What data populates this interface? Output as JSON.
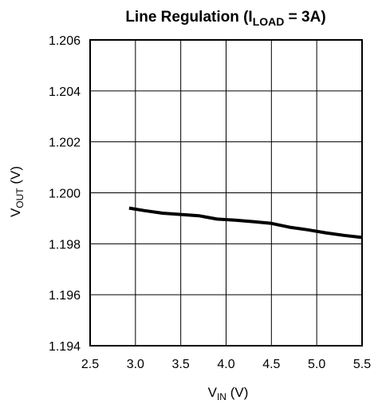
{
  "chart_data": {
    "type": "line",
    "title": {
      "prefix": "Line Regulation (I",
      "sub": "LOAD",
      "suffix": " = 3A)"
    },
    "xlabel": {
      "main": "V",
      "sub": "IN",
      "suffix": " (V)"
    },
    "ylabel": {
      "main": "V",
      "sub": "OUT",
      "suffix": " (V)"
    },
    "xlim": [
      2.5,
      5.5
    ],
    "ylim": [
      1.194,
      1.206
    ],
    "xticks": [
      "2.5",
      "3.0",
      "3.5",
      "4.0",
      "4.5",
      "5.0",
      "5.5"
    ],
    "yticks": [
      "1.194",
      "1.196",
      "1.198",
      "1.200",
      "1.202",
      "1.204",
      "1.206"
    ],
    "grid": true,
    "series": [
      {
        "x": [
          2.93,
          3.1,
          3.3,
          3.5,
          3.7,
          3.9,
          4.1,
          4.3,
          4.5,
          4.7,
          4.9,
          5.1,
          5.3,
          5.5
        ],
        "y": [
          1.1994,
          1.1993,
          1.1992,
          1.19915,
          1.1991,
          1.19897,
          1.19893,
          1.19887,
          1.1988,
          1.19865,
          1.19855,
          1.19843,
          1.19833,
          1.19825
        ],
        "color": "#000000"
      }
    ]
  }
}
